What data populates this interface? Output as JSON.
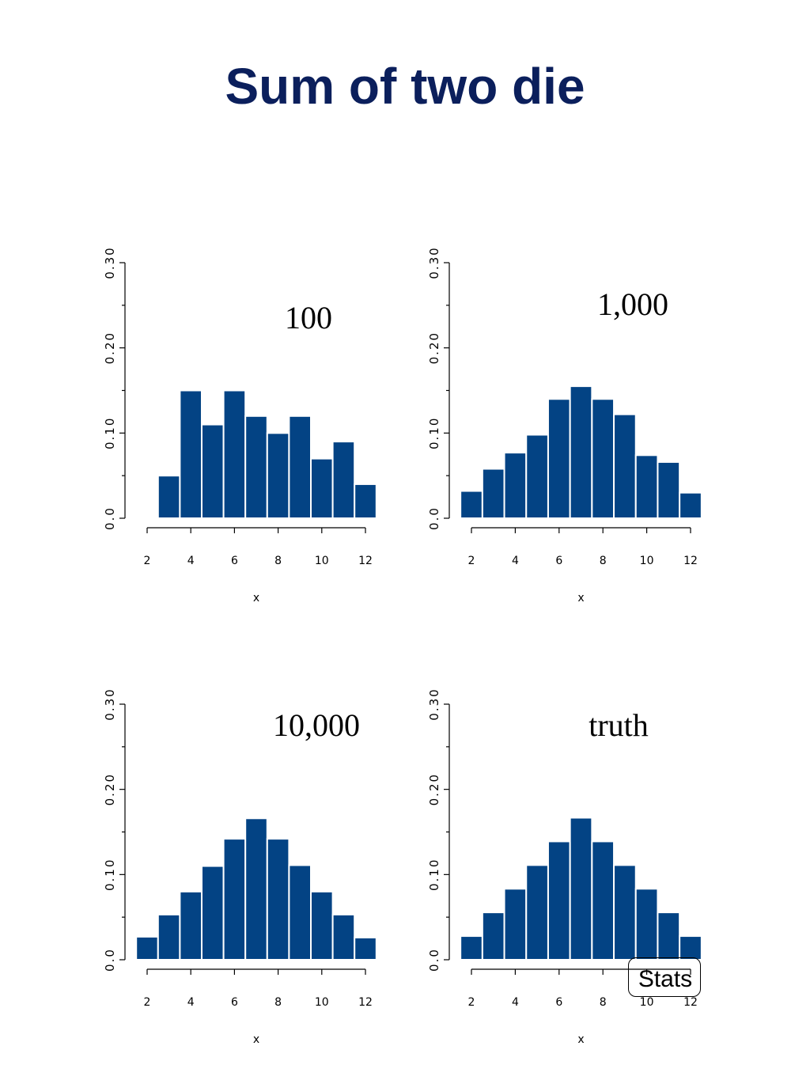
{
  "title": "Sum of two die",
  "chart_data": [
    {
      "type": "bar",
      "label": "100",
      "categories": [
        2,
        3,
        4,
        5,
        6,
        7,
        8,
        9,
        10,
        11,
        12
      ],
      "values": [
        0.0,
        0.05,
        0.15,
        0.11,
        0.15,
        0.12,
        0.1,
        0.12,
        0.07,
        0.09,
        0.04
      ],
      "xlabel": "x",
      "ylabel": "",
      "xticks": [
        "2",
        "4",
        "6",
        "8",
        "10",
        "12"
      ],
      "yticks": [
        "0.0",
        "0.10",
        "0.20",
        "0.30"
      ],
      "ylim": [
        0,
        0.3
      ]
    },
    {
      "type": "bar",
      "label": "1,000",
      "categories": [
        2,
        3,
        4,
        5,
        6,
        7,
        8,
        9,
        10,
        11,
        12
      ],
      "values": [
        0.032,
        0.058,
        0.077,
        0.098,
        0.14,
        0.155,
        0.14,
        0.122,
        0.074,
        0.066,
        0.03
      ],
      "xlabel": "x",
      "ylabel": "",
      "xticks": [
        "2",
        "4",
        "6",
        "8",
        "10",
        "12"
      ],
      "yticks": [
        "0.0",
        "0.10",
        "0.20",
        "0.30"
      ],
      "ylim": [
        0,
        0.3
      ]
    },
    {
      "type": "bar",
      "label": "10,000",
      "categories": [
        2,
        3,
        4,
        5,
        6,
        7,
        8,
        9,
        10,
        11,
        12
      ],
      "values": [
        0.027,
        0.053,
        0.08,
        0.11,
        0.142,
        0.166,
        0.142,
        0.111,
        0.08,
        0.053,
        0.026
      ],
      "xlabel": "x",
      "ylabel": "",
      "xticks": [
        "2",
        "4",
        "6",
        "8",
        "10",
        "12"
      ],
      "yticks": [
        "0.0",
        "0.10",
        "0.20",
        "0.30"
      ],
      "ylim": [
        0,
        0.3
      ]
    },
    {
      "type": "bar",
      "label": "truth",
      "categories": [
        2,
        3,
        4,
        5,
        6,
        7,
        8,
        9,
        10,
        11,
        12
      ],
      "values": [
        0.0278,
        0.0556,
        0.0833,
        0.1111,
        0.1389,
        0.1667,
        0.1389,
        0.1111,
        0.0833,
        0.0556,
        0.0278
      ],
      "xlabel": "x",
      "ylabel": "",
      "xticks": [
        "2",
        "4",
        "6",
        "8",
        "10",
        "12"
      ],
      "yticks": [
        "0.0",
        "0.10",
        "0.20",
        "0.30"
      ],
      "ylim": [
        0,
        0.3
      ]
    }
  ],
  "badge": "Stats",
  "colors": {
    "bar": "#034384",
    "title": "#0b1f5c"
  }
}
